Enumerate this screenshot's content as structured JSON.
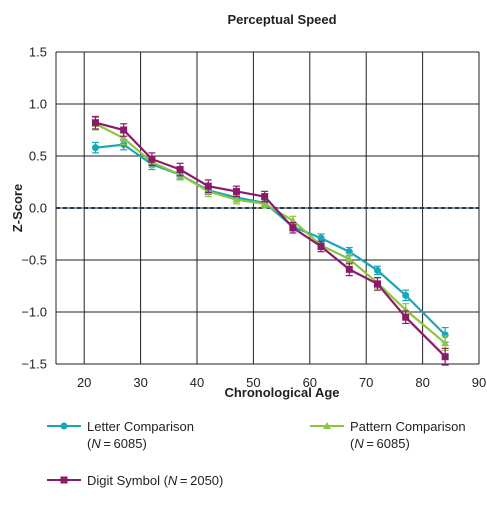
{
  "chart_data": {
    "type": "line",
    "title": "Perceptual Speed",
    "xlabel": "Chronological Age",
    "ylabel": "Z-Score",
    "xlim": [
      15,
      90
    ],
    "ylim": [
      -1.5,
      1.5
    ],
    "x_ticks": [
      20,
      30,
      40,
      50,
      60,
      70,
      80,
      90
    ],
    "y_ticks": [
      -1.5,
      -1.0,
      -0.5,
      0.0,
      0.5,
      1.0,
      1.5
    ],
    "x_tick_labels": [
      "20",
      "30",
      "40",
      "50",
      "60",
      "70",
      "80",
      "90"
    ],
    "y_tick_labels": [
      "−1.5",
      "−1.0",
      "−0.5",
      "0.0",
      "0.5",
      "1.0",
      "1.5"
    ],
    "grid": true,
    "reference_line": 0.0,
    "reference_line_color": "#1f3a5f",
    "x": [
      22,
      27,
      32,
      37,
      42,
      47,
      52,
      57,
      62,
      67,
      72,
      77,
      84
    ],
    "series": [
      {
        "name": "Letter Comparison",
        "n_label": "(N = 6085)",
        "n_value": "6085",
        "color": "#1aa6b7",
        "marker": "circle",
        "values": [
          0.58,
          0.61,
          0.42,
          0.32,
          0.17,
          0.1,
          0.05,
          -0.18,
          -0.29,
          -0.42,
          -0.6,
          -0.84,
          -1.22
        ],
        "errors": [
          0.05,
          0.05,
          0.05,
          0.04,
          0.04,
          0.04,
          0.04,
          0.04,
          0.04,
          0.04,
          0.04,
          0.05,
          0.07
        ]
      },
      {
        "name": "Pattern Comparison",
        "n_label": "(N = 6085)",
        "n_value": "6085",
        "color": "#8cc63f",
        "marker": "triangle",
        "values": [
          0.81,
          0.67,
          0.44,
          0.32,
          0.16,
          0.08,
          0.04,
          -0.12,
          -0.36,
          -0.49,
          -0.72,
          -0.98,
          -1.3
        ],
        "errors": [
          0.06,
          0.06,
          0.05,
          0.05,
          0.05,
          0.04,
          0.04,
          0.04,
          0.04,
          0.05,
          0.05,
          0.06,
          0.07
        ]
      },
      {
        "name": "Digit Symbol",
        "n_label": "(N = 2050)",
        "n_value": "2050",
        "color": "#8b1a6b",
        "marker": "square",
        "values": [
          0.82,
          0.75,
          0.47,
          0.37,
          0.21,
          0.16,
          0.11,
          -0.19,
          -0.37,
          -0.59,
          -0.73,
          -1.05,
          -1.43
        ],
        "errors": [
          0.06,
          0.06,
          0.06,
          0.06,
          0.06,
          0.05,
          0.05,
          0.05,
          0.05,
          0.06,
          0.06,
          0.06,
          0.08
        ]
      }
    ]
  }
}
